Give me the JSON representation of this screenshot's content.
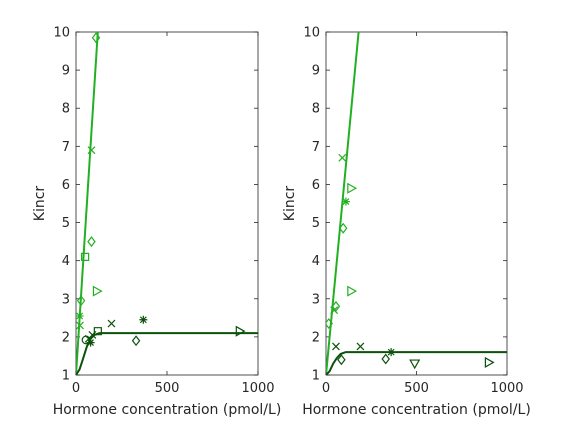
{
  "chart_data": [
    {
      "type": "scatter",
      "panel": "left",
      "xlabel": "Hormone concentration (pmol/L)",
      "ylabel": "Kincr",
      "xlim": [
        0,
        1000
      ],
      "ylim": [
        1,
        10
      ],
      "xticks": [
        "0",
        "500",
        "1000"
      ],
      "yticks": [
        "1",
        "2",
        "3",
        "4",
        "5",
        "6",
        "7",
        "8",
        "9",
        "10"
      ],
      "grid": false,
      "colors": {
        "light": "#22b022",
        "dark": "#0b520b"
      },
      "lines": [
        {
          "color": "light",
          "points": [
            [
              0,
              1.0
            ],
            [
              120,
              10.0
            ]
          ]
        },
        {
          "color": "dark",
          "points": [
            [
              0,
              1.0
            ],
            [
              20,
              1.15
            ],
            [
              40,
              1.45
            ],
            [
              60,
              1.75
            ],
            [
              80,
              1.95
            ],
            [
              100,
              2.05
            ],
            [
              130,
              2.1
            ],
            [
              200,
              2.1
            ],
            [
              1000,
              2.1
            ]
          ]
        }
      ],
      "points": [
        {
          "marker": "diamond",
          "color": "light",
          "x": 110,
          "y": 9.85
        },
        {
          "marker": "x",
          "color": "light",
          "x": 85,
          "y": 6.9
        },
        {
          "marker": "diamond",
          "color": "light",
          "x": 85,
          "y": 4.5
        },
        {
          "marker": "square",
          "color": "light",
          "x": 50,
          "y": 4.1
        },
        {
          "marker": "triangle-right",
          "color": "light",
          "x": 115,
          "y": 3.2
        },
        {
          "marker": "diamond",
          "color": "light",
          "x": 28,
          "y": 2.95
        },
        {
          "marker": "x",
          "color": "light",
          "x": 22,
          "y": 2.3
        },
        {
          "marker": "star",
          "color": "light",
          "x": 20,
          "y": 2.55
        },
        {
          "marker": "circle",
          "color": "dark",
          "x": 55,
          "y": 1.92
        },
        {
          "marker": "x",
          "color": "dark",
          "x": 70,
          "y": 1.95
        },
        {
          "marker": "star",
          "color": "dark",
          "x": 80,
          "y": 1.85
        },
        {
          "marker": "x",
          "color": "dark",
          "x": 90,
          "y": 2.05
        },
        {
          "marker": "square",
          "color": "dark",
          "x": 120,
          "y": 2.15
        },
        {
          "marker": "x",
          "color": "dark",
          "x": 195,
          "y": 2.35
        },
        {
          "marker": "star",
          "color": "dark",
          "x": 370,
          "y": 2.45
        },
        {
          "marker": "diamond",
          "color": "dark",
          "x": 330,
          "y": 1.9
        },
        {
          "marker": "triangle-right",
          "color": "dark",
          "x": 900,
          "y": 2.15
        }
      ]
    },
    {
      "type": "scatter",
      "panel": "right",
      "xlabel": "Hormone concentration (pmol/L)",
      "ylabel": "Kincr",
      "xlim": [
        0,
        1000
      ],
      "ylim": [
        1,
        10
      ],
      "xticks": [
        "0",
        "500",
        "1000"
      ],
      "yticks": [
        "1",
        "2",
        "3",
        "4",
        "5",
        "6",
        "7",
        "8",
        "9",
        "10"
      ],
      "grid": false,
      "colors": {
        "light": "#22b022",
        "dark": "#0b520b"
      },
      "lines": [
        {
          "color": "light",
          "points": [
            [
              0,
              1.0
            ],
            [
              180,
              10.0
            ]
          ]
        },
        {
          "color": "dark",
          "points": [
            [
              0,
              1.0
            ],
            [
              20,
              1.1
            ],
            [
              40,
              1.3
            ],
            [
              60,
              1.45
            ],
            [
              80,
              1.55
            ],
            [
              110,
              1.6
            ],
            [
              200,
              1.6
            ],
            [
              1000,
              1.6
            ]
          ]
        }
      ],
      "points": [
        {
          "marker": "x",
          "color": "light",
          "x": 90,
          "y": 6.7
        },
        {
          "marker": "triangle-right",
          "color": "light",
          "x": 140,
          "y": 5.9
        },
        {
          "marker": "star",
          "color": "light",
          "x": 110,
          "y": 5.55
        },
        {
          "marker": "diamond",
          "color": "light",
          "x": 95,
          "y": 4.85
        },
        {
          "marker": "triangle-right",
          "color": "light",
          "x": 140,
          "y": 3.2
        },
        {
          "marker": "diamond",
          "color": "light",
          "x": 55,
          "y": 2.8
        },
        {
          "marker": "x",
          "color": "light",
          "x": 45,
          "y": 2.7
        },
        {
          "marker": "diamond",
          "color": "light",
          "x": 15,
          "y": 2.35
        },
        {
          "marker": "x",
          "color": "dark",
          "x": 55,
          "y": 1.75
        },
        {
          "marker": "diamond",
          "color": "dark",
          "x": 85,
          "y": 1.4
        },
        {
          "marker": "x",
          "color": "dark",
          "x": 190,
          "y": 1.75
        },
        {
          "marker": "diamond",
          "color": "dark",
          "x": 330,
          "y": 1.42
        },
        {
          "marker": "star",
          "color": "dark",
          "x": 360,
          "y": 1.6
        },
        {
          "marker": "triangle-down",
          "color": "dark",
          "x": 490,
          "y": 1.3
        },
        {
          "marker": "triangle-right",
          "color": "dark",
          "x": 900,
          "y": 1.33
        }
      ]
    }
  ]
}
